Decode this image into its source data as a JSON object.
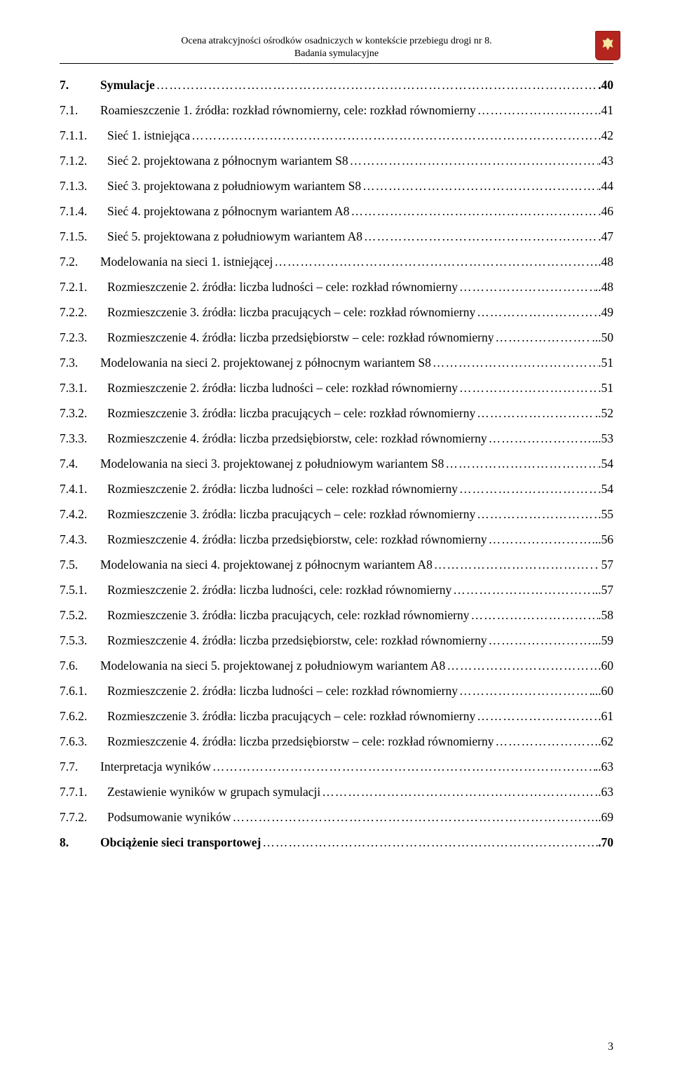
{
  "header": {
    "line1": "Ocena atrakcyjności ośrodków osadniczych w kontekście przebiegu drogi nr 8.",
    "line2": "Badania symulacyjne"
  },
  "toc": [
    {
      "num": "7.",
      "text": "Symulacje",
      "page": ".40",
      "bold": true,
      "wide": false
    },
    {
      "num": "7.1.",
      "text": "Roamieszczenie 1. źródła: rozkład równomierny, cele: rozkład równomierny",
      "page": ".41",
      "bold": false,
      "wide": false
    },
    {
      "num": "7.1.1.",
      "text": "Sieć 1. istniejąca",
      "page": ".42",
      "bold": false,
      "wide": true
    },
    {
      "num": "7.1.2.",
      "text": "Sieć 2. projektowana z północnym wariantem S8",
      "page": ".43",
      "bold": false,
      "wide": true
    },
    {
      "num": "7.1.3.",
      "text": "Sieć 3. projektowana z południowym wariantem S8",
      "page": ".44",
      "bold": false,
      "wide": true
    },
    {
      "num": "7.1.4.",
      "text": "Sieć 4. projektowana z  północnym wariantem A8",
      "page": ".46",
      "bold": false,
      "wide": true
    },
    {
      "num": "7.1.5.",
      "text": "Sieć 5. projektowana z  południowym wariantem A8",
      "page": ".47",
      "bold": false,
      "wide": true
    },
    {
      "num": "7.2.",
      "text": "Modelowania na sieci 1. istniejącej",
      "page": ".48",
      "bold": false,
      "wide": false
    },
    {
      "num": "7.2.1.",
      "text": "Rozmieszczenie 2.  źródła: liczba ludności – cele: rozkład równomierny   ",
      "page": "..48",
      "bold": false,
      "wide": true
    },
    {
      "num": "7.2.2.",
      "text": "Rozmieszczenie 3.  źródła: liczba pracujących – cele: rozkład równomierny   ",
      "page": ".49",
      "bold": false,
      "wide": true
    },
    {
      "num": "7.2.3.",
      "text": "Rozmieszczenie 4.  źródła: liczba przedsiębiorstw – cele: rozkład równomierny ",
      "page": "...50",
      "bold": false,
      "wide": true
    },
    {
      "num": "7.3.",
      "text": "Modelowania na sieci 2. projektowanej z północnym wariantem S8",
      "page": ".51",
      "bold": false,
      "wide": false
    },
    {
      "num": "7.3.1.",
      "text": "Rozmieszczenie 2.  źródła: liczba ludności – cele: rozkład równomierny",
      "page": ".51",
      "bold": false,
      "wide": true
    },
    {
      "num": "7.3.2.",
      "text": "Rozmieszczenie 3.  źródła: liczba pracujących – cele: rozkład równomierny",
      "page": "..52",
      "bold": false,
      "wide": true
    },
    {
      "num": "7.3.3.",
      "text": "Rozmieszczenie 4.  źródła: liczba przedsiębiorstw, cele: rozkład równomierny",
      "page": "...53",
      "bold": false,
      "wide": true
    },
    {
      "num": "7.4.",
      "text": "Modelowania na sieci 3. projektowanej z południowym wariantem S8",
      "page": ".54",
      "bold": false,
      "wide": false
    },
    {
      "num": "7.4.1.",
      "text": "Rozmieszczenie 2.  źródła: liczba ludności – cele: rozkład równomierny   ",
      "page": ".54",
      "bold": false,
      "wide": true
    },
    {
      "num": "7.4.2.",
      "text": "Rozmieszczenie 3.  źródła: liczba pracujących – cele: rozkład równomierny",
      "page": ".55",
      "bold": false,
      "wide": true
    },
    {
      "num": "7.4.3.",
      "text": "Rozmieszczenie 4.  źródła: liczba przedsiębiorstw, cele: rozkład równomierny",
      "page": "...56",
      "bold": false,
      "wide": true
    },
    {
      "num": "7.5.",
      "text": "Modelowania na sieci 4. projektowanej z północnym wariantem A8",
      "page": ". 57",
      "bold": false,
      "wide": false
    },
    {
      "num": "7.5.1.",
      "text": "Rozmieszczenie 2.  źródła: liczba ludności, cele: rozkład równomierny",
      "page": "...57",
      "bold": false,
      "wide": true
    },
    {
      "num": "7.5.2.",
      "text": "Rozmieszczenie 3.  źródła: liczba pracujących, cele: rozkład równomierny",
      "page": ".58",
      "bold": false,
      "wide": true
    },
    {
      "num": "7.5.3.",
      "text": "Rozmieszczenie 4.  źródła: liczba przedsiębiorstw, cele: rozkład równomierny",
      "page": "...59",
      "bold": false,
      "wide": true
    },
    {
      "num": "7.6.",
      "text": "Modelowania na sieci 5. projektowanej z południowym wariantem A8",
      "page": ".60",
      "bold": false,
      "wide": false
    },
    {
      "num": "7.6.1.",
      "text": "Rozmieszczenie 2.  źródła: liczba ludności – cele: rozkład równomierny",
      "page": "...60",
      "bold": false,
      "wide": true
    },
    {
      "num": "7.6.2.",
      "text": "Rozmieszczenie 3.  źródła: liczba pracujących – cele: rozkład równomierny",
      "page": ".61",
      "bold": false,
      "wide": true
    },
    {
      "num": "7.6.3.",
      "text": "Rozmieszczenie 4.  źródła: liczba przedsiębiorstw – cele: rozkład równomierny",
      "page": ".62",
      "bold": false,
      "wide": true
    },
    {
      "num": "7.7.",
      "text": "Interpretacja wyników",
      "page": "..63",
      "bold": false,
      "wide": false
    },
    {
      "num": "7.7.1.",
      "text": "Zestawienie wyników w grupach symulacji",
      "page": ".63",
      "bold": false,
      "wide": true
    },
    {
      "num": "7.7.2.",
      "text": "Podsumowanie wyników",
      "page": "..69",
      "bold": false,
      "wide": true
    },
    {
      "num": "8.",
      "text": "Obciążenie sieci transportowej",
      "page": ".70",
      "bold": true,
      "wide": false
    }
  ],
  "footer": {
    "page": "3"
  },
  "colors": {
    "crest_bg": "#b3251e",
    "crest_border": "#8a1d17",
    "eagle": "#f5e6a8",
    "text": "#000000",
    "background": "#ffffff"
  }
}
